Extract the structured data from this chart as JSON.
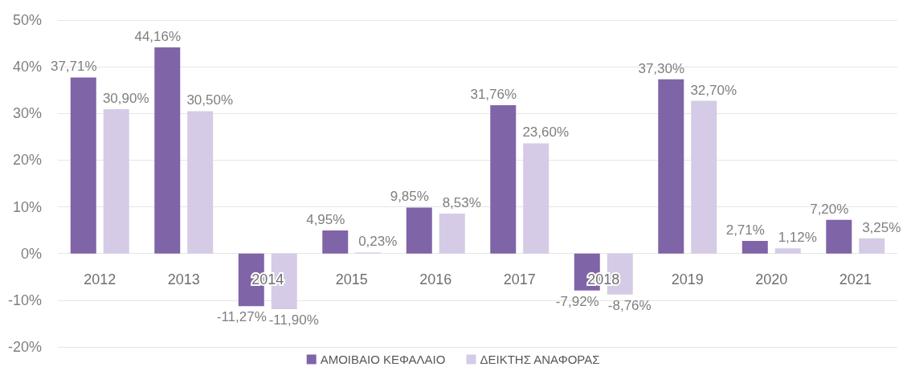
{
  "chart_data": {
    "type": "bar",
    "categories": [
      "2012",
      "2013",
      "2014",
      "2015",
      "2016",
      "2017",
      "2018",
      "2019",
      "2020",
      "2021"
    ],
    "series": [
      {
        "name": "ΑΜΟΙΒΑΙΟ ΚΕΦΑΛΑΙΟ",
        "color": "#8064a8",
        "values": [
          37.71,
          44.16,
          -11.27,
          4.95,
          9.85,
          31.76,
          -7.92,
          37.3,
          2.71,
          7.2
        ],
        "value_labels": [
          "37,71%",
          "44,16%",
          "-11,27%",
          "4,95%",
          "9,85%",
          "31,76%",
          "-7,92%",
          "37,30%",
          "2,71%",
          "7,20%"
        ]
      },
      {
        "name": "ΔΕΙΚΤΗΣ ΑΝΑΦΟΡΑΣ",
        "color": "#d5cbe6",
        "values": [
          30.9,
          30.5,
          -11.9,
          0.23,
          8.53,
          23.6,
          -8.76,
          32.7,
          1.12,
          3.25
        ],
        "value_labels": [
          "30,90%",
          "30,50%",
          "-11,90%",
          "0,23%",
          "8,53%",
          "23,60%",
          "-8,76%",
          "32,70%",
          "1,12%",
          "3,25%"
        ]
      }
    ],
    "ylim": [
      -20,
      50
    ],
    "yticks": [
      {
        "value": -20,
        "label": "-20%"
      },
      {
        "value": -10,
        "label": "-10%"
      },
      {
        "value": 0,
        "label": "0%"
      },
      {
        "value": 10,
        "label": "10%"
      },
      {
        "value": 20,
        "label": "20%"
      },
      {
        "value": 30,
        "label": "30%"
      },
      {
        "value": 40,
        "label": "40%"
      },
      {
        "value": 50,
        "label": "50%"
      }
    ],
    "grid": "y",
    "legend": "bottom"
  }
}
